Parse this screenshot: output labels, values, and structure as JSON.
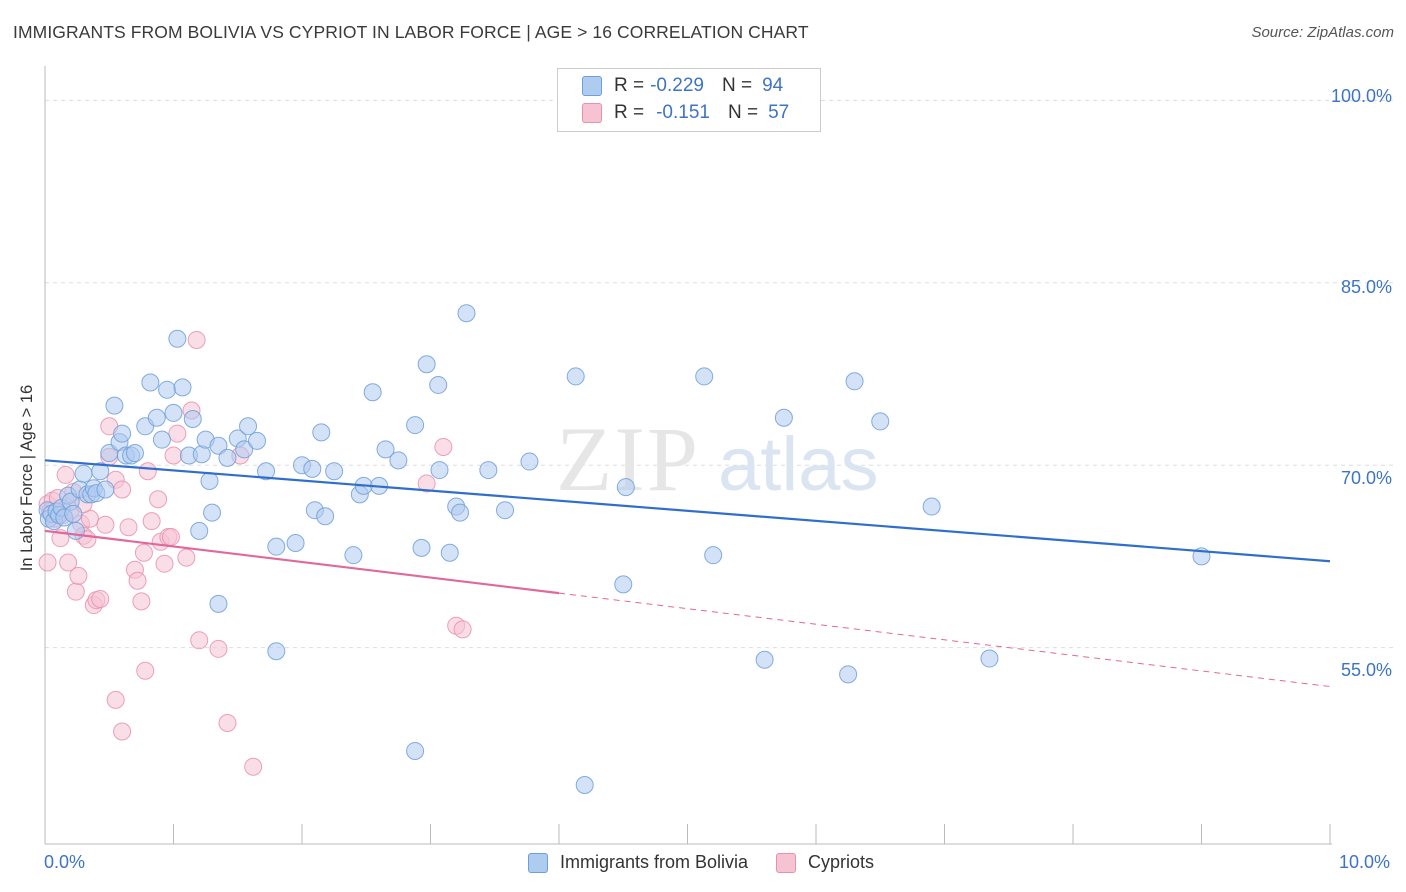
{
  "title": "IMMIGRANTS FROM BOLIVIA VS CYPRIOT IN LABOR FORCE | AGE > 16 CORRELATION CHART",
  "source": "Source: ZipAtlas.com",
  "watermark": {
    "zip": "ZIP",
    "atlas": "atlas"
  },
  "legend_top": [
    {
      "r_label": "R =",
      "r_value": "-0.229",
      "n_label": "N =",
      "n_value": "94"
    },
    {
      "r_label": "R =",
      "r_value": "-0.151",
      "n_label": "N =",
      "n_value": "57"
    }
  ],
  "colors": {
    "blue_fill": "#aecbf0",
    "blue_stroke": "#6f9fd8",
    "blue_line": "#2f6fca",
    "pink_fill": "#f6c3d3",
    "pink_stroke": "#ea8fae",
    "pink_line": "#e0689a",
    "tick_text": "#3d74c4",
    "grid": "#dddddd"
  },
  "chart_data": {
    "type": "scatter",
    "title": "IMMIGRANTS FROM BOLIVIA VS CYPRIOT IN LABOR FORCE | AGE > 16 CORRELATION CHART",
    "xlabel": "",
    "ylabel": "In Labor Force | Age > 16",
    "xlim": [
      0,
      10
    ],
    "ylim": [
      40,
      102.5
    ],
    "x_tick_labels": [
      "0.0%",
      "10.0%"
    ],
    "y_ticks": [
      55,
      70,
      85,
      100
    ],
    "y_tick_labels": [
      "55.0%",
      "70.0%",
      "85.0%",
      "100.0%"
    ],
    "grid": "horizontal dashed",
    "legend_position": "bottom-center",
    "series": [
      {
        "name": "Immigrants from Bolivia",
        "r": -0.229,
        "n": 94,
        "trend": {
          "x": [
            0.0,
            10.0
          ],
          "y": [
            70.4,
            62.1
          ],
          "dashed_from": null
        },
        "points": [
          [
            0.02,
            66.3
          ],
          [
            0.03,
            65.6
          ],
          [
            0.05,
            66.0
          ],
          [
            0.07,
            65.4
          ],
          [
            0.09,
            66.2
          ],
          [
            0.11,
            65.9
          ],
          [
            0.13,
            66.5
          ],
          [
            0.15,
            65.7
          ],
          [
            0.18,
            67.5
          ],
          [
            0.2,
            67.0
          ],
          [
            0.22,
            66.0
          ],
          [
            0.24,
            64.6
          ],
          [
            0.27,
            68.0
          ],
          [
            0.3,
            69.3
          ],
          [
            0.33,
            67.6
          ],
          [
            0.36,
            67.6
          ],
          [
            0.38,
            68.1
          ],
          [
            0.4,
            67.7
          ],
          [
            0.43,
            69.5
          ],
          [
            0.47,
            68.0
          ],
          [
            0.5,
            71.0
          ],
          [
            0.54,
            74.9
          ],
          [
            0.58,
            71.9
          ],
          [
            0.6,
            72.6
          ],
          [
            0.63,
            70.8
          ],
          [
            0.67,
            70.8
          ],
          [
            0.7,
            71.0
          ],
          [
            0.78,
            73.2
          ],
          [
            0.82,
            76.8
          ],
          [
            0.87,
            73.9
          ],
          [
            0.91,
            72.1
          ],
          [
            0.95,
            76.2
          ],
          [
            1.0,
            74.3
          ],
          [
            1.03,
            80.4
          ],
          [
            1.07,
            76.4
          ],
          [
            1.12,
            70.8
          ],
          [
            1.15,
            73.8
          ],
          [
            1.22,
            70.9
          ],
          [
            1.25,
            72.1
          ],
          [
            1.28,
            68.7
          ],
          [
            1.3,
            66.1
          ],
          [
            1.35,
            71.6
          ],
          [
            1.42,
            70.6
          ],
          [
            1.5,
            72.2
          ],
          [
            1.55,
            71.3
          ],
          [
            1.58,
            73.2
          ],
          [
            1.65,
            72.0
          ],
          [
            1.72,
            69.5
          ],
          [
            1.8,
            63.3
          ],
          [
            1.95,
            63.6
          ],
          [
            2.0,
            70.0
          ],
          [
            2.08,
            69.7
          ],
          [
            2.1,
            66.3
          ],
          [
            2.15,
            72.7
          ],
          [
            2.18,
            65.8
          ],
          [
            2.25,
            69.5
          ],
          [
            2.4,
            62.6
          ],
          [
            2.45,
            67.6
          ],
          [
            2.48,
            68.3
          ],
          [
            2.55,
            76.0
          ],
          [
            2.6,
            68.3
          ],
          [
            2.65,
            71.3
          ],
          [
            2.75,
            70.4
          ],
          [
            2.88,
            73.3
          ],
          [
            2.93,
            63.2
          ],
          [
            2.97,
            78.3
          ],
          [
            3.06,
            76.6
          ],
          [
            3.07,
            69.6
          ],
          [
            3.15,
            62.8
          ],
          [
            3.2,
            66.6
          ],
          [
            3.23,
            66.1
          ],
          [
            3.28,
            82.5
          ],
          [
            3.45,
            69.6
          ],
          [
            3.58,
            66.3
          ],
          [
            3.77,
            70.3
          ],
          [
            4.13,
            77.3
          ],
          [
            4.5,
            60.2
          ],
          [
            4.52,
            68.2
          ],
          [
            5.13,
            77.3
          ],
          [
            5.2,
            62.6
          ],
          [
            5.6,
            54.0
          ],
          [
            5.75,
            73.9
          ],
          [
            6.25,
            52.8
          ],
          [
            6.3,
            76.9
          ],
          [
            6.5,
            73.6
          ],
          [
            6.9,
            66.6
          ],
          [
            7.35,
            54.1
          ],
          [
            9.0,
            62.5
          ],
          [
            1.2,
            64.6
          ],
          [
            1.35,
            58.6
          ],
          [
            1.8,
            54.7
          ],
          [
            2.88,
            46.5
          ],
          [
            4.2,
            43.7
          ]
        ]
      },
      {
        "name": "Cypriots",
        "r": -0.151,
        "n": 57,
        "trend": {
          "x": [
            0.0,
            10.0
          ],
          "y": [
            64.6,
            51.8
          ],
          "solid_until": 4.0
        },
        "points": [
          [
            0.02,
            66.8
          ],
          [
            0.04,
            66.2
          ],
          [
            0.06,
            67.1
          ],
          [
            0.08,
            65.6
          ],
          [
            0.1,
            66.0
          ],
          [
            0.12,
            64.0
          ],
          [
            0.14,
            65.9
          ],
          [
            0.16,
            69.2
          ],
          [
            0.18,
            62.0
          ],
          [
            0.2,
            66.3
          ],
          [
            0.22,
            67.8
          ],
          [
            0.24,
            59.6
          ],
          [
            0.26,
            60.9
          ],
          [
            0.28,
            65.2
          ],
          [
            0.3,
            64.2
          ],
          [
            0.33,
            63.9
          ],
          [
            0.35,
            65.6
          ],
          [
            0.38,
            58.5
          ],
          [
            0.4,
            58.9
          ],
          [
            0.43,
            59.0
          ],
          [
            0.47,
            65.1
          ],
          [
            0.5,
            70.7
          ],
          [
            0.55,
            68.8
          ],
          [
            0.6,
            68.0
          ],
          [
            0.65,
            64.9
          ],
          [
            0.7,
            61.4
          ],
          [
            0.72,
            60.5
          ],
          [
            0.75,
            58.8
          ],
          [
            0.77,
            62.8
          ],
          [
            0.8,
            69.5
          ],
          [
            0.83,
            65.4
          ],
          [
            0.88,
            67.2
          ],
          [
            0.9,
            63.7
          ],
          [
            0.93,
            61.9
          ],
          [
            0.96,
            64.1
          ],
          [
            0.98,
            64.1
          ],
          [
            1.0,
            70.8
          ],
          [
            1.03,
            72.6
          ],
          [
            1.1,
            62.4
          ],
          [
            1.14,
            74.5
          ],
          [
            1.18,
            80.3
          ],
          [
            1.2,
            55.6
          ],
          [
            1.35,
            54.9
          ],
          [
            1.42,
            48.8
          ],
          [
            1.52,
            70.8
          ],
          [
            1.62,
            45.2
          ],
          [
            0.55,
            50.7
          ],
          [
            0.6,
            48.1
          ],
          [
            0.78,
            53.1
          ],
          [
            2.97,
            68.5
          ],
          [
            3.1,
            71.5
          ],
          [
            3.2,
            56.8
          ],
          [
            3.25,
            56.5
          ],
          [
            0.5,
            73.2
          ],
          [
            0.02,
            62.0
          ],
          [
            0.1,
            67.3
          ],
          [
            0.3,
            66.8
          ]
        ]
      }
    ]
  },
  "legend_bottom": [
    {
      "label": "Immigrants from Bolivia"
    },
    {
      "label": "Cypriots"
    }
  ]
}
